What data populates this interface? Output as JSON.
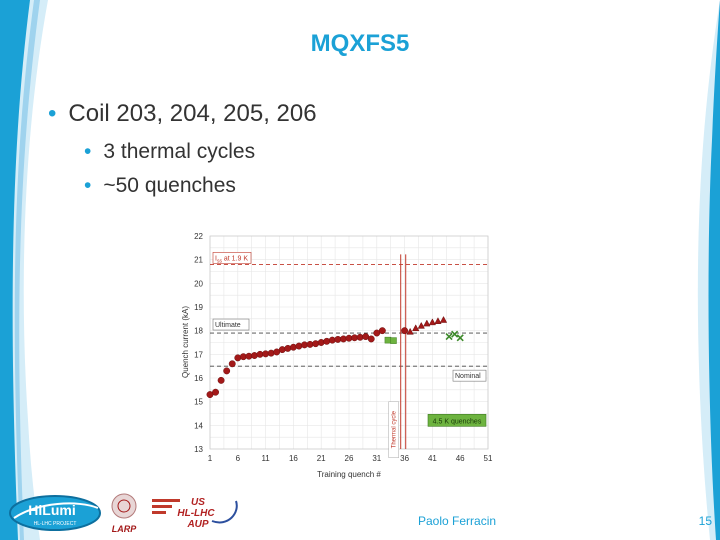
{
  "slide": {
    "title": "MQXFS5",
    "bullets": [
      {
        "text": "Coil 203, 204, 205, 206"
      },
      {
        "text": "3 thermal cycles"
      },
      {
        "text": "~50 quenches"
      }
    ],
    "footer": {
      "author": "Paolo Ferracin",
      "page": "15"
    },
    "logos": {
      "hilumi_main": "HiLumi",
      "hilumi_sub": "HL-LHC PROJECT",
      "larp": "LARP",
      "us_line1": "US",
      "us_line2": "HL-LHC",
      "us_line3": "AUP"
    },
    "colors": {
      "accent": "#1ba1d6",
      "coil_red": "#a31919",
      "coil_green": "#4f9a2e",
      "limit_line": "#c0392b"
    }
  },
  "chart_data": {
    "type": "scatter",
    "xlabel": "Training quench #",
    "ylabel": "Quench current (kA)",
    "xlim": [
      1,
      51
    ],
    "ylim": [
      13,
      22
    ],
    "xticks": [
      1,
      6,
      11,
      16,
      21,
      26,
      31,
      36,
      41,
      46,
      51
    ],
    "yticks": [
      13,
      14,
      15,
      16,
      17,
      18,
      19,
      20,
      21,
      22
    ],
    "grid": true,
    "reference_lines": [
      {
        "label": "I",
        "label_sub": "ss",
        "label_rest": " at 1.9 K",
        "y": 20.8,
        "style": "dashed-red"
      },
      {
        "label": "Ultimate",
        "y": 17.9,
        "style": "dashed-dark"
      },
      {
        "label": "Nominal",
        "y": 16.5,
        "style": "dashed-dark"
      }
    ],
    "vertical_marks": [
      {
        "label": "Thermal cycle",
        "x": 35.3
      },
      {
        "x": 36.2
      }
    ],
    "annotations": [
      {
        "text": "4.5 K quenches"
      }
    ],
    "series": [
      {
        "marker": "circle",
        "color": "#a31919",
        "x": [
          1,
          2,
          3,
          4,
          5,
          6,
          7,
          8,
          9,
          10,
          11,
          12,
          13,
          14,
          15,
          16,
          17,
          18,
          19,
          20,
          21,
          22,
          23,
          24,
          25,
          26,
          27,
          28,
          29,
          30,
          31,
          32,
          36
        ],
        "y": [
          15.3,
          15.4,
          15.9,
          16.3,
          16.6,
          16.85,
          16.9,
          16.92,
          16.95,
          17.0,
          17.02,
          17.05,
          17.1,
          17.2,
          17.25,
          17.3,
          17.35,
          17.4,
          17.42,
          17.45,
          17.5,
          17.55,
          17.6,
          17.63,
          17.65,
          17.68,
          17.7,
          17.72,
          17.75,
          17.65,
          17.9,
          18.0,
          18.0
        ]
      },
      {
        "marker": "square",
        "color": "#6db33f",
        "x": [
          33,
          34
        ],
        "y": [
          17.6,
          17.58
        ]
      },
      {
        "marker": "triangle",
        "color": "#a31919",
        "x": [
          37,
          38,
          39,
          40,
          41,
          42,
          43
        ],
        "y": [
          17.95,
          18.1,
          18.2,
          18.3,
          18.35,
          18.4,
          18.45
        ]
      },
      {
        "marker": "x",
        "color": "#3d8a2a",
        "x": [
          44,
          45,
          46
        ],
        "y": [
          17.75,
          17.85,
          17.7
        ]
      }
    ]
  }
}
